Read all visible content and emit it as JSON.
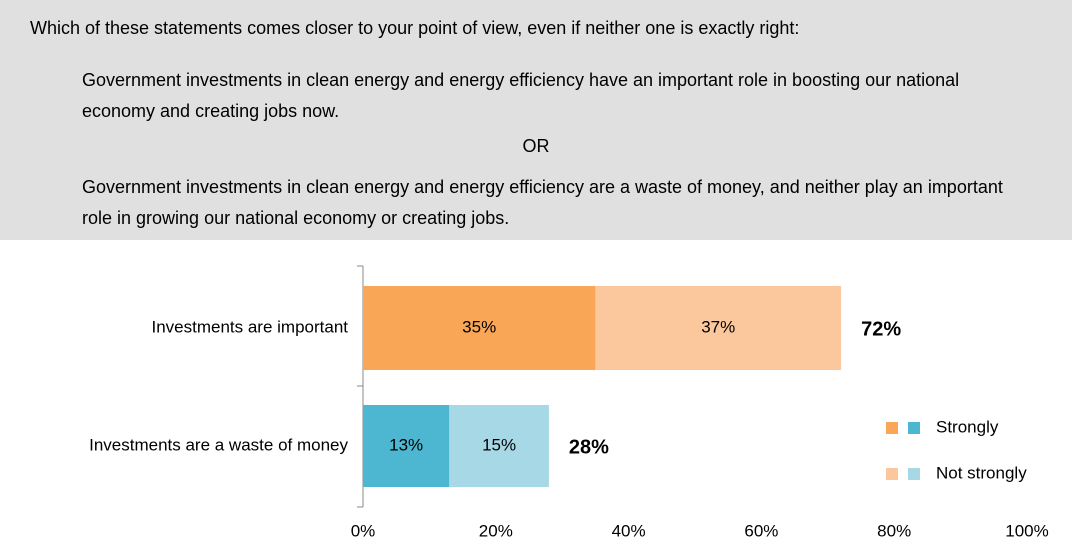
{
  "question": "Which of these statements comes closer to your point of view, even if neither one is exactly right:",
  "statements": [
    "Government investments in clean energy and energy efficiency have an important role in boosting our national economy and creating jobs now.",
    "Government investments in clean energy and energy efficiency are a waste of money, and neither play an important role in growing our national economy or creating jobs."
  ],
  "separator": "OR",
  "chart_data": {
    "type": "bar",
    "orientation": "horizontal",
    "stacked": true,
    "categories": [
      "Investments are important",
      "Investments are a waste of money"
    ],
    "series": [
      {
        "name": "Strongly",
        "colors": [
          "#f9a656",
          "#4db6d0"
        ],
        "values": [
          35,
          13
        ],
        "value_labels": [
          "35%",
          "13%"
        ]
      },
      {
        "name": "Not strongly",
        "colors": [
          "#fbc89e",
          "#a7d8e6"
        ],
        "values": [
          37,
          15
        ],
        "value_labels": [
          "37%",
          "15%"
        ]
      }
    ],
    "totals": [
      72,
      28
    ],
    "total_labels": [
      "72%",
      "28%"
    ],
    "xlim": [
      0,
      100
    ],
    "xticks": [
      {
        "value": 0,
        "label": "0%"
      },
      {
        "value": 20,
        "label": "20%"
      },
      {
        "value": 40,
        "label": "40%"
      },
      {
        "value": 60,
        "label": "60%"
      },
      {
        "value": 80,
        "label": "80%"
      },
      {
        "value": 100,
        "label": "100%"
      }
    ],
    "legend": "lower right"
  }
}
